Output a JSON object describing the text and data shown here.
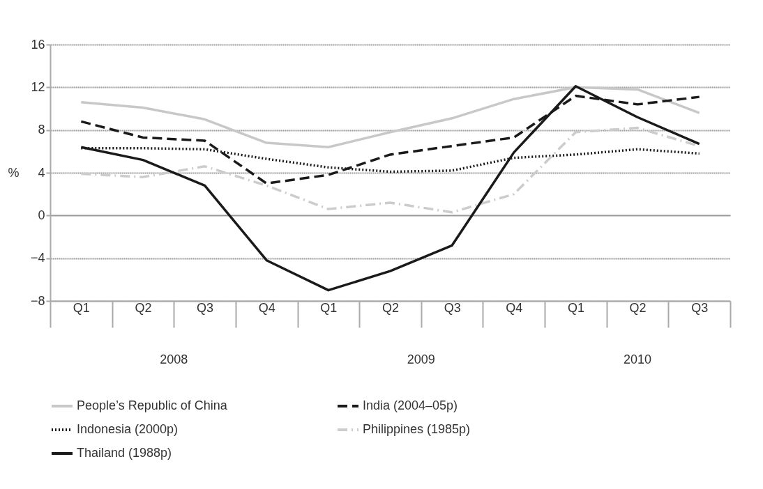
{
  "chart_data": {
    "type": "line",
    "ylabel": "%",
    "categories": [
      "Q1",
      "Q2",
      "Q3",
      "Q4",
      "Q1",
      "Q2",
      "Q3",
      "Q4",
      "Q1",
      "Q2",
      "Q3"
    ],
    "annotations": [
      "2008",
      "2009",
      "2010"
    ],
    "ylim": [
      -8,
      16
    ],
    "yticks": [
      -8,
      -4,
      0,
      4,
      8,
      12,
      16
    ],
    "grid": "y",
    "legend": "bottom",
    "marker": "none",
    "series": [
      {
        "name": "People’s Republic of China",
        "color": "#c8c8c8",
        "line_style": "solid",
        "values": [
          10.6,
          10.1,
          9.0,
          6.8,
          6.4,
          7.8,
          9.1,
          10.9,
          12.0,
          11.8,
          9.6
        ]
      },
      {
        "name": "India (2004–05p)",
        "color": "#1a1a1a",
        "line_style": "dashed",
        "values": [
          8.8,
          7.3,
          7.0,
          3.0,
          3.8,
          5.7,
          6.5,
          7.3,
          11.2,
          10.4,
          11.1
        ]
      },
      {
        "name": "Indonesia (2000p)",
        "color": "#1a1a1a",
        "line_style": "dotted",
        "values": [
          6.3,
          6.3,
          6.2,
          5.3,
          4.5,
          4.1,
          4.2,
          5.4,
          5.7,
          6.2,
          5.8
        ]
      },
      {
        "name": "Philippines (1985p)",
        "color": "#cccccc",
        "line_style": "dashdot",
        "values": [
          3.9,
          3.6,
          4.6,
          2.8,
          0.6,
          1.2,
          0.3,
          2.0,
          7.8,
          8.2,
          6.5
        ]
      },
      {
        "name": "Thailand (1988p)",
        "color": "#1a1a1a",
        "line_style": "solid",
        "values": [
          6.4,
          5.2,
          2.8,
          -4.2,
          -7.0,
          -5.2,
          -2.8,
          5.9,
          12.1,
          9.2,
          6.7
        ]
      }
    ]
  }
}
